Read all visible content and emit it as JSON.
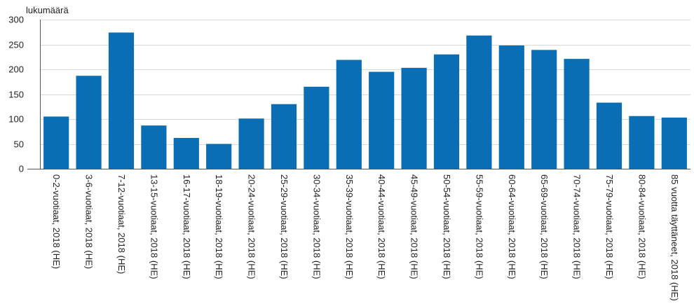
{
  "chart_data": {
    "type": "bar",
    "title": "",
    "xlabel": "",
    "ylabel": "lukumäärä",
    "ylim": [
      0,
      300
    ],
    "yticks": [
      0,
      50,
      100,
      150,
      200,
      250,
      300
    ],
    "grid": true,
    "legend": "none",
    "bar_color": "#0a6eb4",
    "categories": [
      "0-2-vuotiaat, 2018 (HE)",
      "3-6-vuotiaat, 2018 (HE)",
      "7-12-vuotiaat, 2018 (HE)",
      "13-15-vuotiaat, 2018 (HE)",
      "16-17-vuotiaat, 2018 (HE)",
      "18-19-vuotiaat, 2018 (HE)",
      "20-24-vuotiaat, 2018 (HE)",
      "25-29-vuotiaat, 2018 (HE)",
      "30-34-vuotiaat, 2018 (HE)",
      "35-39-vuotiaat, 2018 (HE)",
      "40-44-vuotiaat, 2018 (HE)",
      "45-49-vuotiaat, 2018 (HE)",
      "50-54-vuotiaat, 2018 (HE)",
      "55-59-vuotiaat, 2018 (HE)",
      "60-64-vuotiaat, 2018 (HE)",
      "65-69-vuotiaat, 2018 (HE)",
      "70-74-vuotiaat, 2018 (HE)",
      "75-79-vuotiaat, 2018 (HE)",
      "80-84-vuotiaat, 2018 (HE)",
      "85 vuotta täyttäneet, 2018 (HE)"
    ],
    "values": [
      105,
      187,
      274,
      87,
      62,
      50,
      101,
      130,
      165,
      219,
      195,
      203,
      230,
      268,
      248,
      239,
      221,
      133,
      106,
      103
    ]
  }
}
